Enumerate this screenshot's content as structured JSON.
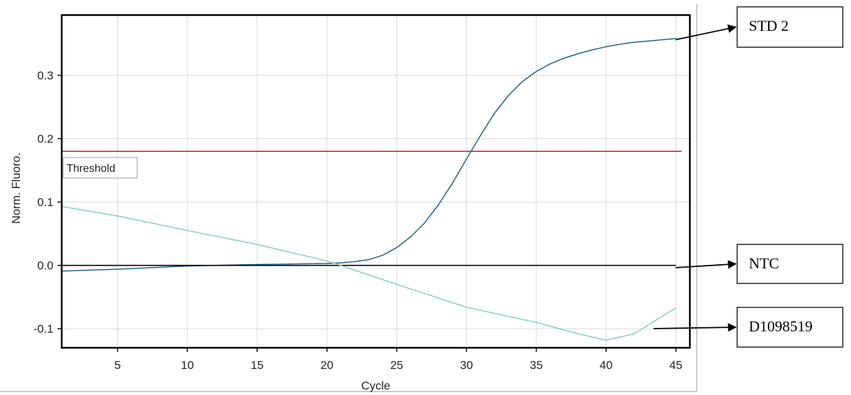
{
  "chart_data": {
    "type": "line",
    "xlabel": "Cycle",
    "ylabel": "Norm. Fluoro.",
    "xlim": [
      1,
      46
    ],
    "ylim": [
      -0.13,
      0.395
    ],
    "xticks": [
      5,
      10,
      15,
      20,
      25,
      30,
      35,
      40,
      45
    ],
    "yticks": [
      -0.1,
      0.0,
      0.1,
      0.2,
      0.3
    ],
    "ytick_labels": [
      "-0.1",
      "0.0",
      "0.1",
      "0.2",
      "0.3"
    ],
    "grid": true,
    "threshold": {
      "label": "Threshold",
      "value": 0.18,
      "color": "#cc2222"
    },
    "series": [
      {
        "name": "STD 2",
        "color": "#1f5f8b",
        "x": [
          1,
          5,
          10,
          14,
          17,
          20,
          21,
          22,
          23,
          24,
          25,
          26,
          27,
          28,
          29,
          30,
          31,
          32,
          33,
          34,
          35,
          36,
          37,
          38,
          39,
          40,
          41,
          42,
          43,
          44,
          45
        ],
        "y": [
          -0.009,
          -0.006,
          -0.001,
          0.001,
          0.002,
          0.003,
          0.004,
          0.006,
          0.009,
          0.016,
          0.028,
          0.045,
          0.067,
          0.096,
          0.13,
          0.168,
          0.205,
          0.24,
          0.268,
          0.29,
          0.306,
          0.318,
          0.327,
          0.334,
          0.34,
          0.345,
          0.349,
          0.352,
          0.354,
          0.356,
          0.358
        ]
      },
      {
        "name": "NTC",
        "color": "#000000",
        "x": [
          1,
          45
        ],
        "y": [
          0.0,
          0.0
        ]
      },
      {
        "name": "D1098519",
        "color": "#7fcfc6",
        "x": [
          1,
          5,
          10,
          15,
          20,
          21,
          25,
          30,
          35,
          38,
          40,
          42,
          45
        ],
        "y": [
          0.093,
          0.078,
          0.055,
          0.033,
          0.007,
          0.0,
          -0.03,
          -0.066,
          -0.09,
          -0.108,
          -0.118,
          -0.108,
          -0.067
        ]
      }
    ],
    "callouts": [
      {
        "text": "STD 2",
        "series": "STD 2"
      },
      {
        "text": "NTC",
        "series": "NTC"
      },
      {
        "text": "D1098519",
        "series": "D1098519"
      }
    ]
  }
}
